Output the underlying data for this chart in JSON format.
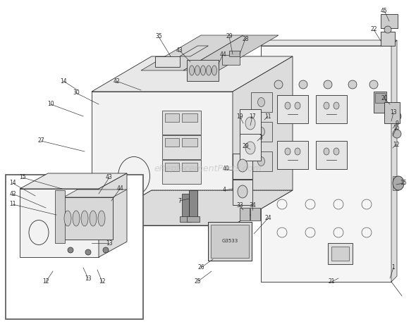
{
  "bg_color": "#ffffff",
  "line_color": "#2a2a2a",
  "label_color": "#1a1a1a",
  "watermark": "eReplacementParts.com",
  "watermark_color": "#bbbbbb",
  "watermark_alpha": 0.6,
  "fig_width": 5.9,
  "fig_height": 4.67,
  "dpi": 100,
  "face_colors": {
    "front": "#f2f2f2",
    "top": "#e8e8e8",
    "right": "#dcdcdc",
    "panel": "#f5f5f5",
    "inset_bg": "#ffffff",
    "component": "#cccccc",
    "dark": "#999999"
  }
}
